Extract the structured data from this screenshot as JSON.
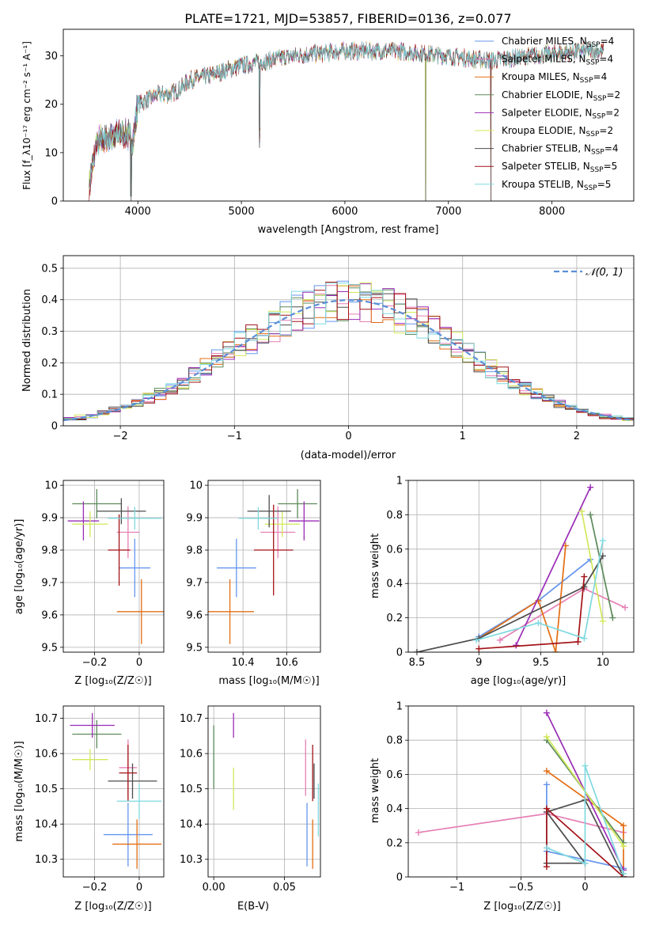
{
  "figure_title": "PLATE=1721, MJD=53857, FIBERID=0136, z=0.077",
  "colors": {
    "Chabrier MILES": "#6495ed",
    "Salpeter MILES": "#e67fb4",
    "Kroupa MILES": "#e36e14",
    "Chabrier ELODIE": "#5b8a5b",
    "Salpeter ELODIE": "#9a2cb5",
    "Kroupa ELODIE": "#d2e85a",
    "Chabrier STELIB": "#4d4d4d",
    "Salpeter STELIB": "#a31217",
    "Kroupa STELIB": "#7fd9e0"
  },
  "chart_data": [
    {
      "id": "spectrum",
      "type": "line",
      "xlabel": "wavelength [Angstrom, rest frame]",
      "ylabel": "Flux [f_λ10⁻¹⁷ erg cm⁻² s⁻¹ A⁻¹]",
      "xlim": [
        3280,
        8790
      ],
      "ylim": [
        0,
        35.5
      ],
      "xticks": [
        4000,
        5000,
        6000,
        7000,
        8000
      ],
      "yticks": [
        0,
        10,
        20,
        30
      ],
      "legend_position": "top-right",
      "legend": [
        {
          "name": "Chabrier MILES",
          "n": "4"
        },
        {
          "name": "Salpeter MILES",
          "n": "4"
        },
        {
          "name": "Kroupa MILES",
          "n": "4"
        },
        {
          "name": "Chabrier ELODIE",
          "n": "2"
        },
        {
          "name": "Salpeter ELODIE",
          "n": "2"
        },
        {
          "name": "Kroupa ELODIE",
          "n": "2"
        },
        {
          "name": "Chabrier STELIB",
          "n": "4"
        },
        {
          "name": "Salpeter STELIB",
          "n": "5"
        },
        {
          "name": "Kroupa STELIB",
          "n": "5"
        }
      ],
      "continuum": {
        "wavelength": [
          3530,
          3600,
          3700,
          3800,
          3900,
          3950,
          4000,
          4100,
          4200,
          4300,
          4400,
          4500,
          4700,
          5000,
          5500,
          6000,
          6500,
          7000,
          7400,
          7800,
          8300,
          8500
        ],
        "flux": [
          3,
          12,
          13,
          14,
          14,
          12,
          20,
          21,
          22,
          22,
          23,
          25,
          26,
          28,
          30,
          31,
          31,
          30,
          29,
          30,
          31,
          31
        ]
      },
      "features": [
        {
          "wavelength": 3935,
          "flux": 0.0,
          "label": ""
        },
        {
          "wavelength": 5175,
          "flux": 11.0,
          "label": ""
        },
        {
          "wavelength": 6780,
          "flux": 0.0,
          "label": ""
        },
        {
          "wavelength": 7410,
          "flux": 0.0,
          "label": ""
        }
      ]
    },
    {
      "id": "residuals",
      "type": "line",
      "xlabel": "(data-model)/error",
      "ylabel": "Normed distribution",
      "xlim": [
        -2.5,
        2.5
      ],
      "ylim": [
        0,
        0.54
      ],
      "xticks": [
        -2,
        -1,
        0,
        1,
        2
      ],
      "yticks": [
        0.0,
        0.1,
        0.2,
        0.3,
        0.4,
        0.5
      ],
      "legend_position": "top-right",
      "legend_label": "𝒩(0, 1)",
      "curve": "normal(0,1)"
    },
    {
      "id": "age_vs_Z",
      "type": "scatter",
      "xlabel": "Z [log₁₀(Z/Z☉)]",
      "ylabel": "age  [log₁₀(age/yr)]",
      "xlim": [
        -0.34,
        0.11
      ],
      "ylim": [
        9.485,
        10.015
      ],
      "xticks": [
        -0.2,
        0.0
      ],
      "yticks": [
        9.5,
        9.6,
        9.7,
        9.8,
        9.9,
        10.0
      ],
      "points": [
        {
          "model": "Chabrier MILES",
          "x": -0.02,
          "y": 9.745,
          "xerr": 0.07,
          "yerr": 0.09
        },
        {
          "model": "Salpeter MILES",
          "x": -0.05,
          "y": 9.855,
          "xerr": 0.05,
          "yerr": 0.08
        },
        {
          "model": "Kroupa MILES",
          "x": 0.01,
          "y": 9.61,
          "xerr": 0.11,
          "yerr": 0.1
        },
        {
          "model": "Chabrier ELODIE",
          "x": -0.19,
          "y": 9.943,
          "xerr": 0.11,
          "yerr": 0.045
        },
        {
          "model": "Salpeter ELODIE",
          "x": -0.25,
          "y": 9.89,
          "xerr": 0.07,
          "yerr": 0.06
        },
        {
          "model": "Kroupa ELODIE",
          "x": -0.22,
          "y": 9.88,
          "xerr": 0.08,
          "yerr": 0.04
        },
        {
          "model": "Chabrier STELIB",
          "x": -0.08,
          "y": 9.92,
          "xerr": 0.11,
          "yerr": 0.04
        },
        {
          "model": "Salpeter STELIB",
          "x": -0.09,
          "y": 9.8,
          "xerr": 0.05,
          "yerr": 0.11
        },
        {
          "model": "Kroupa STELIB",
          "x": -0.02,
          "y": 9.898,
          "xerr": 0.12,
          "yerr": 0.035
        }
      ]
    },
    {
      "id": "age_vs_mass",
      "type": "scatter",
      "xlabel": "mass [log₁₀(M/M☉)]",
      "ylabel": "",
      "xlim": [
        10.24,
        10.755
      ],
      "ylim": [
        9.485,
        10.015
      ],
      "xticks": [
        10.4,
        10.6
      ],
      "yticks": [
        9.5,
        9.6,
        9.7,
        9.8,
        9.9,
        10.0
      ],
      "points": [
        {
          "model": "Chabrier MILES",
          "x": 10.37,
          "y": 9.745,
          "xerr": 0.09,
          "yerr": 0.09
        },
        {
          "model": "Salpeter MILES",
          "x": 10.56,
          "y": 9.855,
          "xerr": 0.08,
          "yerr": 0.08
        },
        {
          "model": "Kroupa MILES",
          "x": 10.34,
          "y": 9.61,
          "xerr": 0.11,
          "yerr": 0.1
        },
        {
          "model": "Chabrier ELODIE",
          "x": 10.65,
          "y": 9.943,
          "xerr": 0.09,
          "yerr": 0.045
        },
        {
          "model": "Salpeter ELODIE",
          "x": 10.68,
          "y": 9.89,
          "xerr": 0.07,
          "yerr": 0.06
        },
        {
          "model": "Kroupa ELODIE",
          "x": 10.58,
          "y": 9.88,
          "xerr": 0.08,
          "yerr": 0.04
        },
        {
          "model": "Chabrier STELIB",
          "x": 10.52,
          "y": 9.92,
          "xerr": 0.1,
          "yerr": 0.05
        },
        {
          "model": "Salpeter STELIB",
          "x": 10.54,
          "y": 9.8,
          "xerr": 0.09,
          "yerr": 0.14
        },
        {
          "model": "Kroupa STELIB",
          "x": 10.47,
          "y": 9.898,
          "xerr": 0.09,
          "yerr": 0.035
        }
      ]
    },
    {
      "id": "weight_vs_age",
      "type": "line",
      "xlabel": "age  [log₁₀(age/yr)]",
      "ylabel": "mass weight",
      "xlim": [
        8.43,
        10.25
      ],
      "ylim": [
        0,
        1.0
      ],
      "xticks": [
        8.5,
        9.0,
        9.5,
        10.0
      ],
      "yticks": [
        0.0,
        0.2,
        0.4,
        0.6,
        0.8,
        1.0
      ],
      "series": [
        {
          "model": "Chabrier MILES",
          "x": [
            9.0,
            9.48,
            9.9
          ],
          "y": [
            0.09,
            0.3,
            0.54
          ]
        },
        {
          "model": "Salpeter MILES",
          "x": [
            9.17,
            9.85,
            10.18
          ],
          "y": [
            0.07,
            0.37,
            0.26
          ]
        },
        {
          "model": "Kroupa MILES",
          "x": [
            9.0,
            9.48,
            9.62,
            9.7
          ],
          "y": [
            0.08,
            0.3,
            0.0,
            0.62
          ]
        },
        {
          "model": "Chabrier ELODIE",
          "x": [
            9.9,
            10.08
          ],
          "y": [
            0.8,
            0.2
          ]
        },
        {
          "model": "Salpeter ELODIE",
          "x": [
            9.3,
            9.9
          ],
          "y": [
            0.04,
            0.96
          ]
        },
        {
          "model": "Kroupa ELODIE",
          "x": [
            9.83,
            10.0
          ],
          "y": [
            0.82,
            0.18
          ]
        },
        {
          "model": "Chabrier STELIB",
          "x": [
            8.5,
            9.0,
            9.85,
            10.0
          ],
          "y": [
            0.0,
            0.08,
            0.38,
            0.56
          ]
        },
        {
          "model": "Salpeter STELIB",
          "x": [
            9.0,
            9.8,
            9.85
          ],
          "y": [
            0.02,
            0.06,
            0.44
          ]
        },
        {
          "model": "Kroupa STELIB",
          "x": [
            8.98,
            9.48,
            9.85,
            10.0
          ],
          "y": [
            0.07,
            0.17,
            0.08,
            0.65
          ]
        }
      ]
    },
    {
      "id": "mass_vs_Z",
      "type": "scatter",
      "xlabel": "Z [log₁₀(Z/Z☉)]",
      "ylabel": "mass [log₁₀(M/M☉)]",
      "xlim": [
        -0.34,
        0.11
      ],
      "ylim": [
        10.25,
        10.735
      ],
      "xticks": [
        -0.2,
        0.0
      ],
      "yticks": [
        10.3,
        10.4,
        10.5,
        10.6,
        10.7
      ],
      "points": [
        {
          "model": "Chabrier MILES",
          "x": -0.05,
          "y": 10.37,
          "xerr": 0.11,
          "yerr": 0.09
        },
        {
          "model": "Salpeter MILES",
          "x": -0.05,
          "y": 10.56,
          "xerr": 0.04,
          "yerr": 0.08
        },
        {
          "model": "Kroupa MILES",
          "x": -0.01,
          "y": 10.343,
          "xerr": 0.11,
          "yerr": 0.07
        },
        {
          "model": "Chabrier ELODIE",
          "x": -0.19,
          "y": 10.655,
          "xerr": 0.11,
          "yerr": 0.04
        },
        {
          "model": "Salpeter ELODIE",
          "x": -0.21,
          "y": 10.68,
          "xerr": 0.1,
          "yerr": 0.035
        },
        {
          "model": "Kroupa ELODIE",
          "x": -0.22,
          "y": 10.583,
          "xerr": 0.08,
          "yerr": 0.03
        },
        {
          "model": "Chabrier STELIB",
          "x": -0.03,
          "y": 10.522,
          "xerr": 0.11,
          "yerr": 0.05
        },
        {
          "model": "Salpeter STELIB",
          "x": -0.05,
          "y": 10.545,
          "xerr": 0.04,
          "yerr": 0.08
        },
        {
          "model": "Kroupa STELIB",
          "x": 0.0,
          "y": 10.465,
          "xerr": 0.1,
          "yerr": 0.05
        }
      ]
    },
    {
      "id": "mass_vs_ebv",
      "type": "scatter",
      "xlabel": "E(B-V)",
      "ylabel": "",
      "xlim": [
        -0.004,
        0.0755
      ],
      "ylim": [
        10.25,
        10.735
      ],
      "xticks": [
        0.0,
        0.05
      ],
      "xtick_labels": [
        "0.00",
        "0.05"
      ],
      "yticks": [
        10.3,
        10.4,
        10.5,
        10.6,
        10.7
      ],
      "points": [
        {
          "model": "Chabrier MILES",
          "x": 0.066,
          "y": 10.37,
          "xerr": 0.0,
          "yerr": 0.09
        },
        {
          "model": "Salpeter MILES",
          "x": 0.065,
          "y": 10.56,
          "xerr": 0.0,
          "yerr": 0.08
        },
        {
          "model": "Kroupa MILES",
          "x": 0.07,
          "y": 10.343,
          "xerr": 0.0,
          "yerr": 0.07
        },
        {
          "model": "Chabrier ELODIE",
          "x": 0.0,
          "y": 10.59,
          "xerr": 0.0,
          "yerr": 0.09
        },
        {
          "model": "Salpeter ELODIE",
          "x": 0.014,
          "y": 10.68,
          "xerr": 0.0,
          "yerr": 0.035
        },
        {
          "model": "Kroupa ELODIE",
          "x": 0.014,
          "y": 10.5,
          "xerr": 0.0,
          "yerr": 0.06
        },
        {
          "model": "Chabrier STELIB",
          "x": 0.071,
          "y": 10.522,
          "xerr": 0.0,
          "yerr": 0.05
        },
        {
          "model": "Salpeter STELIB",
          "x": 0.07,
          "y": 10.545,
          "xerr": 0.0,
          "yerr": 0.08
        },
        {
          "model": "Kroupa STELIB",
          "x": 0.074,
          "y": 10.44,
          "xerr": 0.0,
          "yerr": 0.075
        }
      ]
    },
    {
      "id": "weight_vs_Z",
      "type": "line",
      "xlabel": "Z [log₁₀(Z/Z☉)]",
      "ylabel": "mass weight",
      "xlim": [
        -1.38,
        0.38
      ],
      "ylim": [
        0,
        1.0
      ],
      "xticks": [
        -1.0,
        -0.5,
        0.0
      ],
      "yticks": [
        0.0,
        0.2,
        0.4,
        0.6,
        0.8,
        1.0
      ],
      "series": [
        {
          "model": "Chabrier MILES",
          "x": [
            -0.3,
            -0.3,
            0.3
          ],
          "y": [
            0.54,
            0.15,
            0.05
          ]
        },
        {
          "model": "Salpeter MILES",
          "x": [
            -1.3,
            -0.3,
            0.3
          ],
          "y": [
            0.26,
            0.37,
            0.26
          ]
        },
        {
          "model": "Kroupa MILES",
          "x": [
            -0.3,
            0.3,
            0.3
          ],
          "y": [
            0.62,
            0.3,
            0.0
          ]
        },
        {
          "model": "Chabrier ELODIE",
          "x": [
            -0.3,
            0.3
          ],
          "y": [
            0.8,
            0.2
          ]
        },
        {
          "model": "Salpeter ELODIE",
          "x": [
            -0.3,
            0.3
          ],
          "y": [
            0.96,
            0.04
          ]
        },
        {
          "model": "Kroupa ELODIE",
          "x": [
            -0.3,
            0.3
          ],
          "y": [
            0.82,
            0.18
          ]
        },
        {
          "model": "Chabrier STELIB",
          "x": [
            -0.3,
            0.0,
            -0.3,
            0.0,
            0.3
          ],
          "y": [
            0.08,
            0.08,
            0.38,
            0.45,
            0.0
          ]
        },
        {
          "model": "Salpeter STELIB",
          "x": [
            -0.3,
            -0.3,
            0.3
          ],
          "y": [
            0.06,
            0.4,
            0.0
          ]
        },
        {
          "model": "Kroupa STELIB",
          "x": [
            -0.3,
            0.0,
            0.0,
            0.3
          ],
          "y": [
            0.17,
            0.08,
            0.65,
            0.02
          ]
        }
      ]
    }
  ]
}
